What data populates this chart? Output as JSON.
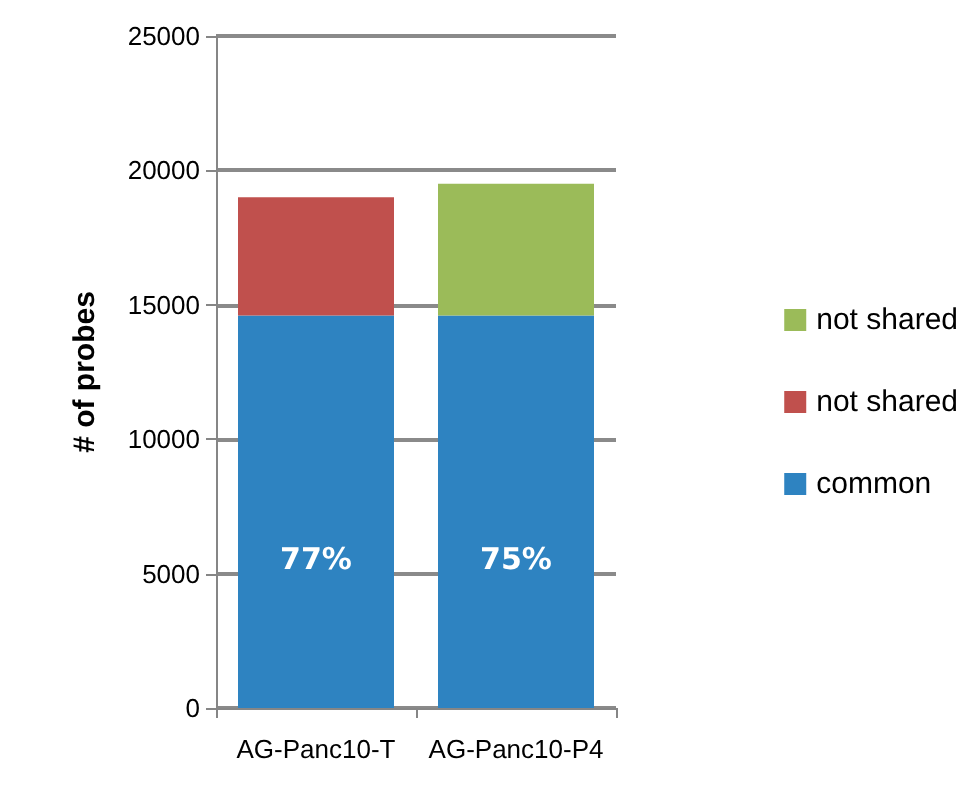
{
  "chart_data": {
    "type": "bar",
    "ylabel": "# of probes",
    "categories": [
      "AG-Panc10-T",
      "AG-Panc10-P4"
    ],
    "stacked": true,
    "series": [
      {
        "name": "common",
        "color": "#2e83c1",
        "values": [
          14600,
          14600
        ]
      },
      {
        "name": "not shared",
        "color": "#c0504d",
        "values": [
          4400,
          null
        ]
      },
      {
        "name": "not shared",
        "color": "#9bbb59",
        "values": [
          null,
          4900
        ]
      }
    ],
    "annotations": [
      "77%",
      "75%"
    ],
    "ylim": [
      0,
      25000
    ],
    "yticks": [
      0,
      5000,
      10000,
      15000,
      20000,
      25000
    ],
    "grid": "y",
    "legend": "right"
  }
}
